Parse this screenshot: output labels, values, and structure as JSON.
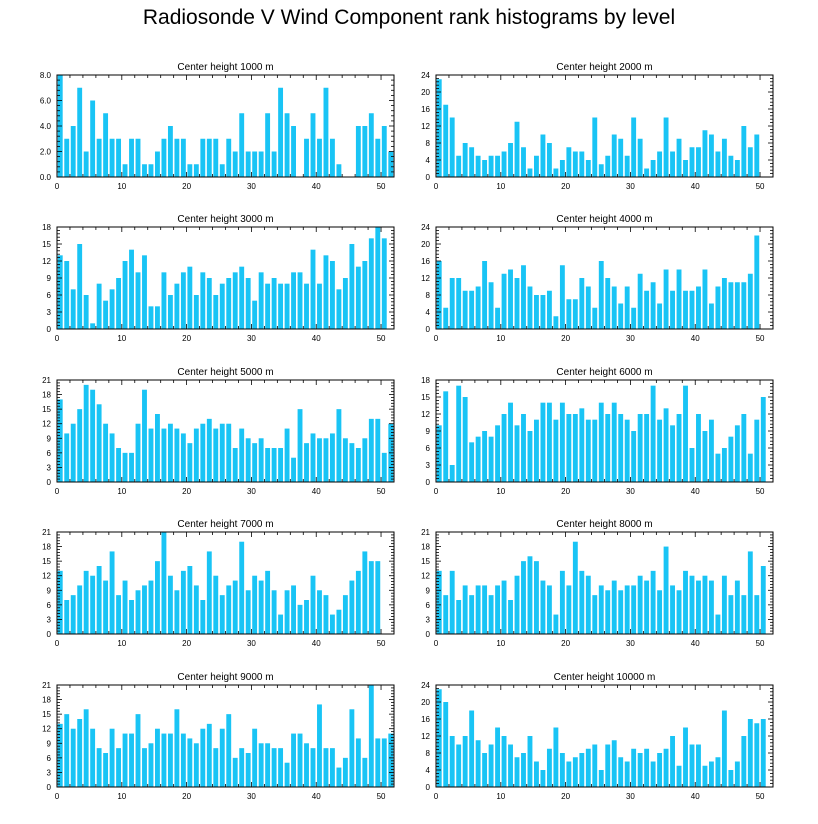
{
  "title": "Radiosonde V Wind Component rank histograms by level",
  "colors": {
    "bar": "#19C4F5",
    "axis": "#000000",
    "background": "#FFFFFF"
  },
  "chart_data": [
    {
      "type": "bar",
      "title": "Center height 1000 m",
      "xlim": [
        0,
        52
      ],
      "ylim": [
        0,
        8
      ],
      "xticks": [
        0,
        10,
        20,
        30,
        40,
        50
      ],
      "yticks": [
        0,
        2,
        4,
        6,
        8
      ],
      "ytick_labels": [
        "0.0",
        "2.0",
        "4.0",
        "6.0",
        "8.0"
      ],
      "values": [
        8,
        3,
        4,
        7,
        2,
        6,
        3,
        5,
        3,
        3,
        1,
        3,
        3,
        1,
        1,
        2,
        3,
        4,
        3,
        3,
        1,
        1,
        3,
        3,
        3,
        1,
        3,
        2,
        5,
        2,
        2,
        2,
        5,
        2,
        7,
        5,
        4,
        0,
        3,
        5,
        3,
        7,
        3,
        1,
        0,
        0,
        4,
        4,
        5,
        3,
        4,
        2
      ]
    },
    {
      "type": "bar",
      "title": "Center height 2000 m",
      "xlim": [
        0,
        52
      ],
      "ylim": [
        0,
        24
      ],
      "xticks": [
        0,
        10,
        20,
        30,
        40,
        50
      ],
      "yticks": [
        0,
        4,
        8,
        12,
        16,
        20,
        24
      ],
      "ytick_labels": [
        "0",
        "4",
        "8",
        "12",
        "16",
        "20",
        "24"
      ],
      "values": [
        23,
        17,
        14,
        5,
        8,
        7,
        5,
        4,
        5,
        5,
        6,
        8,
        13,
        7,
        2,
        5,
        10,
        8,
        2,
        4,
        7,
        6,
        6,
        4,
        14,
        3,
        5,
        10,
        9,
        5,
        14,
        9,
        2,
        4,
        6,
        14,
        6,
        9,
        4,
        7,
        7,
        11,
        10,
        6,
        9,
        5,
        4,
        12,
        7,
        10,
        0,
        0
      ]
    },
    {
      "type": "bar",
      "title": "Center height 3000 m",
      "xlim": [
        0,
        52
      ],
      "ylim": [
        0,
        18
      ],
      "xticks": [
        0,
        10,
        20,
        30,
        40,
        50
      ],
      "yticks": [
        0,
        3,
        6,
        9,
        12,
        15,
        18
      ],
      "ytick_labels": [
        "0",
        "3",
        "6",
        "9",
        "12",
        "15",
        "18"
      ],
      "values": [
        13,
        12,
        7,
        15,
        6,
        1,
        8,
        5,
        7,
        9,
        12,
        14,
        10,
        13,
        4,
        4,
        10,
        6,
        8,
        10,
        11,
        6,
        10,
        9,
        6,
        8,
        9,
        10,
        11,
        9,
        5,
        10,
        8,
        9,
        8,
        8,
        10,
        10,
        8,
        14,
        8,
        13,
        12,
        7,
        9,
        15,
        11,
        12,
        16,
        18,
        16,
        0
      ]
    },
    {
      "type": "bar",
      "title": "Center height 4000 m",
      "xlim": [
        0,
        52
      ],
      "ylim": [
        0,
        24
      ],
      "xticks": [
        0,
        10,
        20,
        30,
        40,
        50
      ],
      "yticks": [
        0,
        4,
        8,
        12,
        16,
        20,
        24
      ],
      "ytick_labels": [
        "0",
        "4",
        "8",
        "12",
        "16",
        "20",
        "24"
      ],
      "values": [
        16,
        5,
        12,
        12,
        9,
        9,
        10,
        16,
        11,
        5,
        13,
        14,
        12,
        15,
        10,
        8,
        8,
        9,
        3,
        15,
        7,
        7,
        12,
        10,
        5,
        16,
        12,
        10,
        6,
        10,
        5,
        13,
        9,
        11,
        6,
        14,
        9,
        14,
        9,
        9,
        10,
        14,
        6,
        10,
        12,
        11,
        11,
        11,
        13,
        22,
        0,
        0
      ]
    },
    {
      "type": "bar",
      "title": "Center height 5000 m",
      "xlim": [
        0,
        52
      ],
      "ylim": [
        0,
        21
      ],
      "xticks": [
        0,
        10,
        20,
        30,
        40,
        50
      ],
      "yticks": [
        0,
        3,
        6,
        9,
        12,
        15,
        18,
        21
      ],
      "ytick_labels": [
        "0",
        "3",
        "6",
        "9",
        "12",
        "15",
        "18",
        "21"
      ],
      "values": [
        17,
        10,
        12,
        15,
        20,
        19,
        16,
        12,
        10,
        7,
        6,
        6,
        12,
        19,
        11,
        14,
        11,
        12,
        11,
        10,
        8,
        11,
        12,
        13,
        11,
        12,
        12,
        7,
        11,
        9,
        8,
        9,
        7,
        7,
        7,
        11,
        5,
        15,
        8,
        10,
        9,
        9,
        10,
        15,
        9,
        8,
        7,
        9,
        13,
        13,
        6,
        12
      ]
    },
    {
      "type": "bar",
      "title": "Center height 6000 m",
      "xlim": [
        0,
        52
      ],
      "ylim": [
        0,
        18
      ],
      "xticks": [
        0,
        10,
        20,
        30,
        40,
        50
      ],
      "yticks": [
        0,
        3,
        6,
        9,
        12,
        15,
        18
      ],
      "ytick_labels": [
        "0",
        "3",
        "6",
        "9",
        "12",
        "15",
        "18"
      ],
      "values": [
        10,
        16,
        3,
        17,
        15,
        7,
        8,
        9,
        8,
        10,
        12,
        14,
        10,
        12,
        9,
        11,
        14,
        14,
        11,
        14,
        12,
        12,
        13,
        11,
        11,
        14,
        12,
        14,
        12,
        11,
        9,
        12,
        12,
        17,
        11,
        13,
        10,
        12,
        17,
        6,
        12,
        9,
        11,
        5,
        6,
        8,
        10,
        12,
        5,
        11,
        15,
        0
      ]
    },
    {
      "type": "bar",
      "title": "Center height 7000 m",
      "xlim": [
        0,
        52
      ],
      "ylim": [
        0,
        21
      ],
      "xticks": [
        0,
        10,
        20,
        30,
        40,
        50
      ],
      "yticks": [
        0,
        3,
        6,
        9,
        12,
        15,
        18,
        21
      ],
      "ytick_labels": [
        "0",
        "3",
        "6",
        "9",
        "12",
        "15",
        "18",
        "21"
      ],
      "values": [
        13,
        7,
        8,
        10,
        13,
        12,
        14,
        11,
        17,
        8,
        11,
        7,
        9,
        10,
        11,
        15,
        21,
        12,
        9,
        13,
        14,
        10,
        7,
        17,
        12,
        8,
        10,
        11,
        19,
        9,
        12,
        11,
        13,
        9,
        4,
        9,
        10,
        6,
        7,
        12,
        9,
        8,
        4,
        5,
        8,
        11,
        13,
        17,
        15,
        15,
        0,
        0
      ]
    },
    {
      "type": "bar",
      "title": "Center height 8000 m",
      "xlim": [
        0,
        52
      ],
      "ylim": [
        0,
        21
      ],
      "xticks": [
        0,
        10,
        20,
        30,
        40,
        50
      ],
      "yticks": [
        0,
        3,
        6,
        9,
        12,
        15,
        18,
        21
      ],
      "ytick_labels": [
        "0",
        "3",
        "6",
        "9",
        "12",
        "15",
        "18",
        "21"
      ],
      "values": [
        13,
        8,
        13,
        7,
        10,
        8,
        10,
        10,
        8,
        10,
        11,
        7,
        12,
        15,
        16,
        15,
        11,
        10,
        4,
        13,
        10,
        19,
        13,
        12,
        8,
        10,
        9,
        11,
        9,
        10,
        10,
        12,
        11,
        13,
        9,
        18,
        10,
        9,
        13,
        12,
        11,
        12,
        11,
        4,
        12,
        8,
        11,
        8,
        17,
        8,
        14,
        0
      ]
    },
    {
      "type": "bar",
      "title": "Center height 9000 m",
      "xlim": [
        0,
        52
      ],
      "ylim": [
        0,
        21
      ],
      "xticks": [
        0,
        10,
        20,
        30,
        40,
        50
      ],
      "yticks": [
        0,
        3,
        6,
        9,
        12,
        15,
        18,
        21
      ],
      "ytick_labels": [
        "0",
        "3",
        "6",
        "9",
        "12",
        "15",
        "18",
        "21"
      ],
      "values": [
        13,
        15,
        12,
        14,
        16,
        12,
        8,
        7,
        12,
        8,
        11,
        11,
        15,
        8,
        9,
        12,
        11,
        11,
        16,
        11,
        10,
        9,
        12,
        13,
        8,
        12,
        15,
        6,
        8,
        7,
        12,
        9,
        9,
        8,
        8,
        5,
        11,
        11,
        9,
        8,
        17,
        8,
        8,
        4,
        6,
        16,
        10,
        6,
        21,
        10,
        10,
        11
      ]
    },
    {
      "type": "bar",
      "title": "Center height 10000 m",
      "xlim": [
        0,
        52
      ],
      "ylim": [
        0,
        24
      ],
      "xticks": [
        0,
        10,
        20,
        30,
        40,
        50
      ],
      "yticks": [
        0,
        4,
        8,
        12,
        16,
        20,
        24
      ],
      "ytick_labels": [
        "0",
        "4",
        "8",
        "12",
        "16",
        "20",
        "24"
      ],
      "values": [
        23,
        20,
        12,
        10,
        12,
        18,
        11,
        8,
        10,
        14,
        12,
        10,
        7,
        8,
        12,
        6,
        4,
        9,
        14,
        8,
        6,
        7,
        8,
        9,
        10,
        4,
        10,
        11,
        7,
        6,
        9,
        8,
        9,
        6,
        8,
        9,
        12,
        5,
        14,
        10,
        10,
        5,
        6,
        7,
        18,
        4,
        6,
        12,
        16,
        15,
        16,
        0
      ]
    }
  ]
}
